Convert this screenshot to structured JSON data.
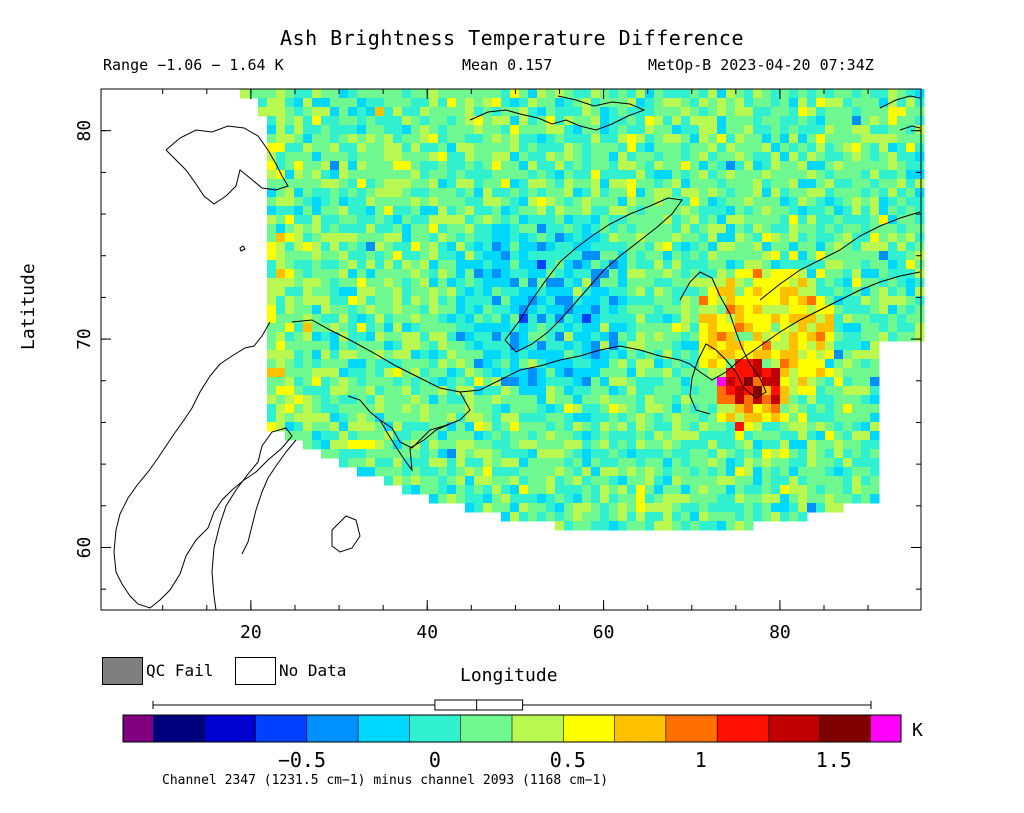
{
  "title": "Ash Brightness Temperature Difference",
  "stats": {
    "range": "Range −1.06 − 1.64 K",
    "mean": "Mean 0.157",
    "satellite": "MetOp-B 2023-04-20 07:34Z"
  },
  "axes": {
    "xlabel": "Longitude",
    "ylabel": "Latitude",
    "x_range": [
      3,
      96
    ],
    "y_range": [
      57,
      82
    ],
    "x_ticks": [
      "20",
      "40",
      "60",
      "80"
    ],
    "y_ticks": [
      "60",
      "70",
      "80"
    ]
  },
  "legend": {
    "qc_fail": "QC Fail",
    "no_data": "No Data",
    "qc_fail_color": "#7f7f7f",
    "no_data_color": "#ffffff"
  },
  "colorbar": {
    "unit": "K",
    "range": [
      -1.06,
      1.64
    ],
    "ticks": [
      "−0.5",
      "0",
      "0.5",
      "1",
      "1.5"
    ],
    "tick_values": [
      -0.5,
      0,
      0.5,
      1,
      1.5
    ],
    "under_color": "#800080",
    "over_color": "#ff00ff",
    "colors": [
      "#00007f",
      "#0000d0",
      "#0040ff",
      "#0090ff",
      "#00d8ff",
      "#30f0d0",
      "#70f890",
      "#b8f850",
      "#ffff00",
      "#ffc000",
      "#ff7000",
      "#ff1000",
      "#c00000",
      "#7f0000"
    ],
    "box_stats": {
      "min": -1.06,
      "q1": 0.0,
      "median": 0.157,
      "q3": 0.33,
      "max": 1.64
    }
  },
  "footer": "Channel 2347 (1231.5 cm−1) minus channel 2093 (1168 cm−1)"
}
